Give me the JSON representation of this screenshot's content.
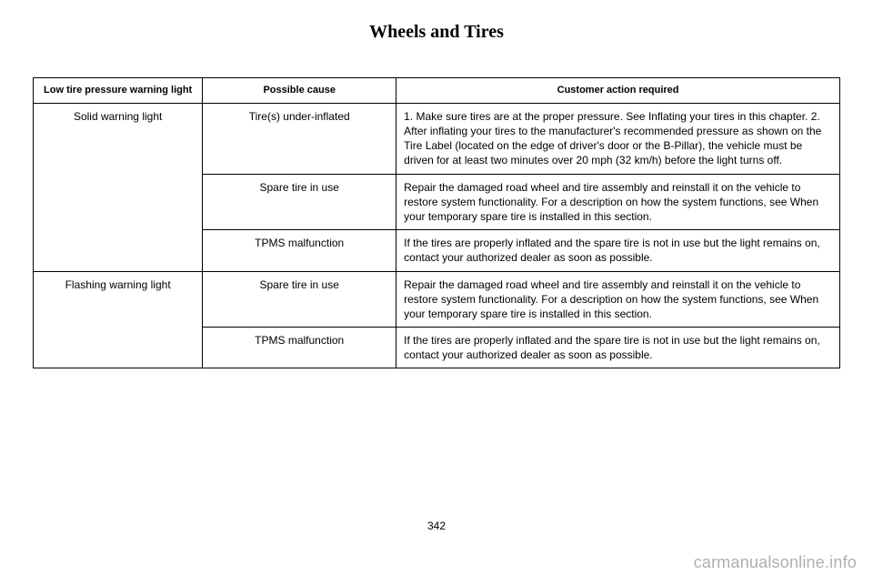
{
  "page": {
    "title": "Wheels and Tires",
    "number": "342",
    "watermark": "carmanualsonline.info"
  },
  "table": {
    "headers": {
      "col_a": "Low tire pressure warning light",
      "col_b": "Possible cause",
      "col_c": "Customer action required"
    },
    "rows": {
      "r0": {
        "a": "Solid warning light",
        "b": "Tire(s) under-inflated",
        "c": "1. Make sure tires are at the proper pressure. See Inflating your tires in this chapter. 2. After inflating your tires to the manufacturer's recommended pressure as shown on the Tire Label (located on the edge of driver's door or the B-Pillar), the vehicle must be driven for at least two minutes over 20 mph (32 km/h) before the light turns off."
      },
      "r1": {
        "b": "Spare tire in use",
        "c": "Repair the damaged road wheel and tire assembly and reinstall it on the vehicle to restore system functionality. For a description on how the system functions, see When your temporary spare tire is installed in this section."
      },
      "r2": {
        "b": "TPMS malfunction",
        "c": "If the tires are properly inflated and the spare tire is not in use but the light remains on, contact your authorized dealer as soon as possible."
      },
      "r3": {
        "a": "Flashing warning light",
        "b": "Spare tire in use",
        "c": "Repair the damaged road wheel and tire assembly and reinstall it on the vehicle to restore system functionality. For a description on how the system functions, see When your temporary spare tire is installed in this section."
      },
      "r4": {
        "b": "TPMS malfunction",
        "c": "If the tires are properly inflated and the spare tire is not in use but the light remains on, contact your authorized dealer as soon as possible."
      }
    }
  }
}
